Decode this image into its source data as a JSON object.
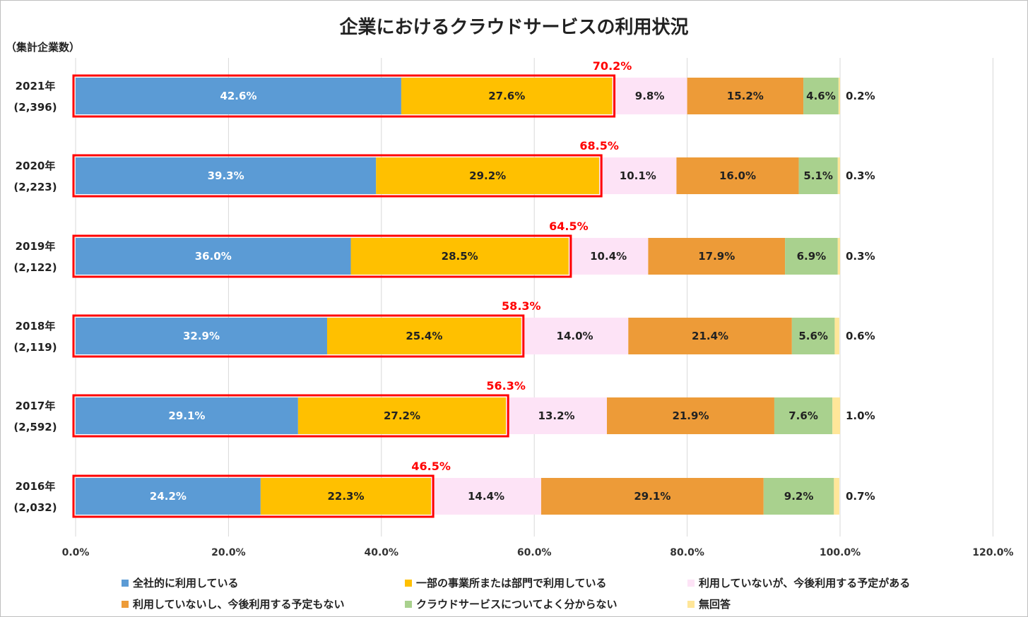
{
  "chart_data": {
    "type": "bar",
    "orientation": "horizontal",
    "stacked": true,
    "title": "企業におけるクラウドサービスの利用状況",
    "unit_note": "（集計企業数）",
    "categories": [
      {
        "year": "2021年",
        "count": "(2,396)"
      },
      {
        "year": "2020年",
        "count": "(2,223)"
      },
      {
        "year": "2019年",
        "count": "(2,122)"
      },
      {
        "year": "2018年",
        "count": "(2,119)"
      },
      {
        "year": "2017年",
        "count": "(2,592)"
      },
      {
        "year": "2016年",
        "count": "(2,032)"
      }
    ],
    "series": [
      {
        "name": "全社的に利用している",
        "color": "#5b9bd5",
        "label_color": "#ffffff",
        "values": [
          42.6,
          39.3,
          36.0,
          32.9,
          29.1,
          24.2
        ],
        "labels": [
          "42.6%",
          "39.3%",
          "36.0%",
          "32.9%",
          "29.1%",
          "24.2%"
        ]
      },
      {
        "name": "一部の事業所または部門で利用している",
        "color": "#ffc000",
        "label_color": "#222222",
        "values": [
          27.6,
          29.2,
          28.5,
          25.4,
          27.2,
          22.3
        ],
        "labels": [
          "27.6%",
          "29.2%",
          "28.5%",
          "25.4%",
          "27.2%",
          "22.3%"
        ]
      },
      {
        "name": "利用していないが、今後利用する予定がある",
        "color": "#fde3f6",
        "label_color": "#222222",
        "values": [
          9.8,
          10.1,
          10.4,
          14.0,
          13.2,
          14.4
        ],
        "labels": [
          "9.8%",
          "10.1%",
          "10.4%",
          "14.0%",
          "13.2%",
          "14.4%"
        ]
      },
      {
        "name": "利用していないし、今後利用する予定もない",
        "color": "#ed9b38",
        "label_color": "#222222",
        "values": [
          15.2,
          16.0,
          17.9,
          21.4,
          21.9,
          29.1
        ],
        "labels": [
          "15.2%",
          "16.0%",
          "17.9%",
          "21.4%",
          "21.9%",
          "29.1%"
        ]
      },
      {
        "name": "クラウドサービスについてよく分からない",
        "color": "#a9d18e",
        "label_color": "#222222",
        "values": [
          4.6,
          5.1,
          6.9,
          5.6,
          7.6,
          9.2
        ],
        "labels": [
          "4.6%",
          "5.1%",
          "6.9%",
          "5.6%",
          "7.6%",
          "9.2%"
        ]
      },
      {
        "name": "無回答",
        "color": "#ffe699",
        "label_color": "#222222",
        "values": [
          0.2,
          0.3,
          0.3,
          0.6,
          1.0,
          0.7
        ],
        "labels": [
          "0.2%",
          "0.3%",
          "0.3%",
          "0.6%",
          "1.0%",
          "0.7%"
        ]
      }
    ],
    "highlight_totals": [
      70.2,
      68.5,
      64.5,
      58.3,
      56.3,
      46.5
    ],
    "highlight_labels": [
      "70.2%",
      "68.5%",
      "64.5%",
      "58.3%",
      "56.3%",
      "46.5%"
    ],
    "highlight_color": "#ff0000",
    "xlim": [
      0,
      120
    ],
    "xticks": [
      0,
      20,
      40,
      60,
      80,
      100,
      120
    ],
    "xtick_labels": [
      "0.0%",
      "20.0%",
      "40.0%",
      "60.0%",
      "80.0%",
      "100.0%",
      "120.0%"
    ],
    "grid": true,
    "legend_position": "bottom"
  }
}
